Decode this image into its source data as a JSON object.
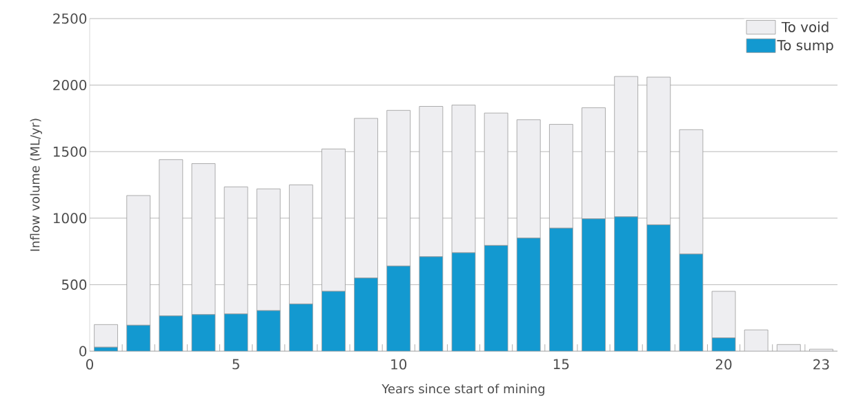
{
  "chart_data": {
    "type": "bar",
    "stacked": true,
    "xlabel": "Years since start of mining",
    "ylabel": "Inflow volume (ML/yr)",
    "x": [
      1,
      2,
      3,
      4,
      5,
      6,
      7,
      8,
      9,
      10,
      11,
      12,
      13,
      14,
      15,
      16,
      17,
      18,
      19,
      20,
      21,
      22,
      23
    ],
    "series": [
      {
        "name": "To sump",
        "color": "#1399d0",
        "values": [
          30,
          195,
          265,
          275,
          280,
          305,
          355,
          450,
          550,
          640,
          710,
          740,
          795,
          850,
          925,
          995,
          1010,
          950,
          730,
          100,
          0,
          0,
          0
        ]
      },
      {
        "name": "To void",
        "color": "#eeeef1",
        "values": [
          170,
          975,
          1175,
          1135,
          955,
          915,
          895,
          1070,
          1200,
          1170,
          1130,
          1110,
          995,
          890,
          780,
          835,
          1055,
          1110,
          935,
          350,
          160,
          50,
          15
        ]
      }
    ],
    "xlim": [
      0.5,
      23.5
    ],
    "xticks": [
      {
        "value": 0.5,
        "label": "0"
      },
      {
        "value": 1.5,
        "label": null
      },
      {
        "value": 2.5,
        "label": null
      },
      {
        "value": 3.5,
        "label": null
      },
      {
        "value": 4.5,
        "label": null
      },
      5,
      {
        "value": 5.5,
        "label": null
      },
      {
        "value": 6.5,
        "label": null
      },
      {
        "value": 7.5,
        "label": null
      },
      {
        "value": 8.5,
        "label": null
      },
      {
        "value": 9.5,
        "label": null
      },
      10,
      {
        "value": 10.5,
        "label": null
      },
      {
        "value": 11.5,
        "label": null
      },
      {
        "value": 12.5,
        "label": null
      },
      {
        "value": 13.5,
        "label": null
      },
      {
        "value": 14.5,
        "label": null
      },
      15,
      {
        "value": 15.5,
        "label": null
      },
      {
        "value": 16.5,
        "label": null
      },
      {
        "value": 17.5,
        "label": null
      },
      {
        "value": 18.5,
        "label": null
      },
      {
        "value": 19.5,
        "label": null
      },
      20,
      {
        "value": 20.5,
        "label": null
      },
      {
        "value": 21.5,
        "label": null
      },
      {
        "value": 22.5,
        "label": null
      },
      23
    ],
    "ylim": [
      0,
      2500
    ],
    "yticks": [
      0,
      500,
      1000,
      1500,
      2000,
      2500
    ],
    "grid": "y",
    "legend": "top right"
  }
}
